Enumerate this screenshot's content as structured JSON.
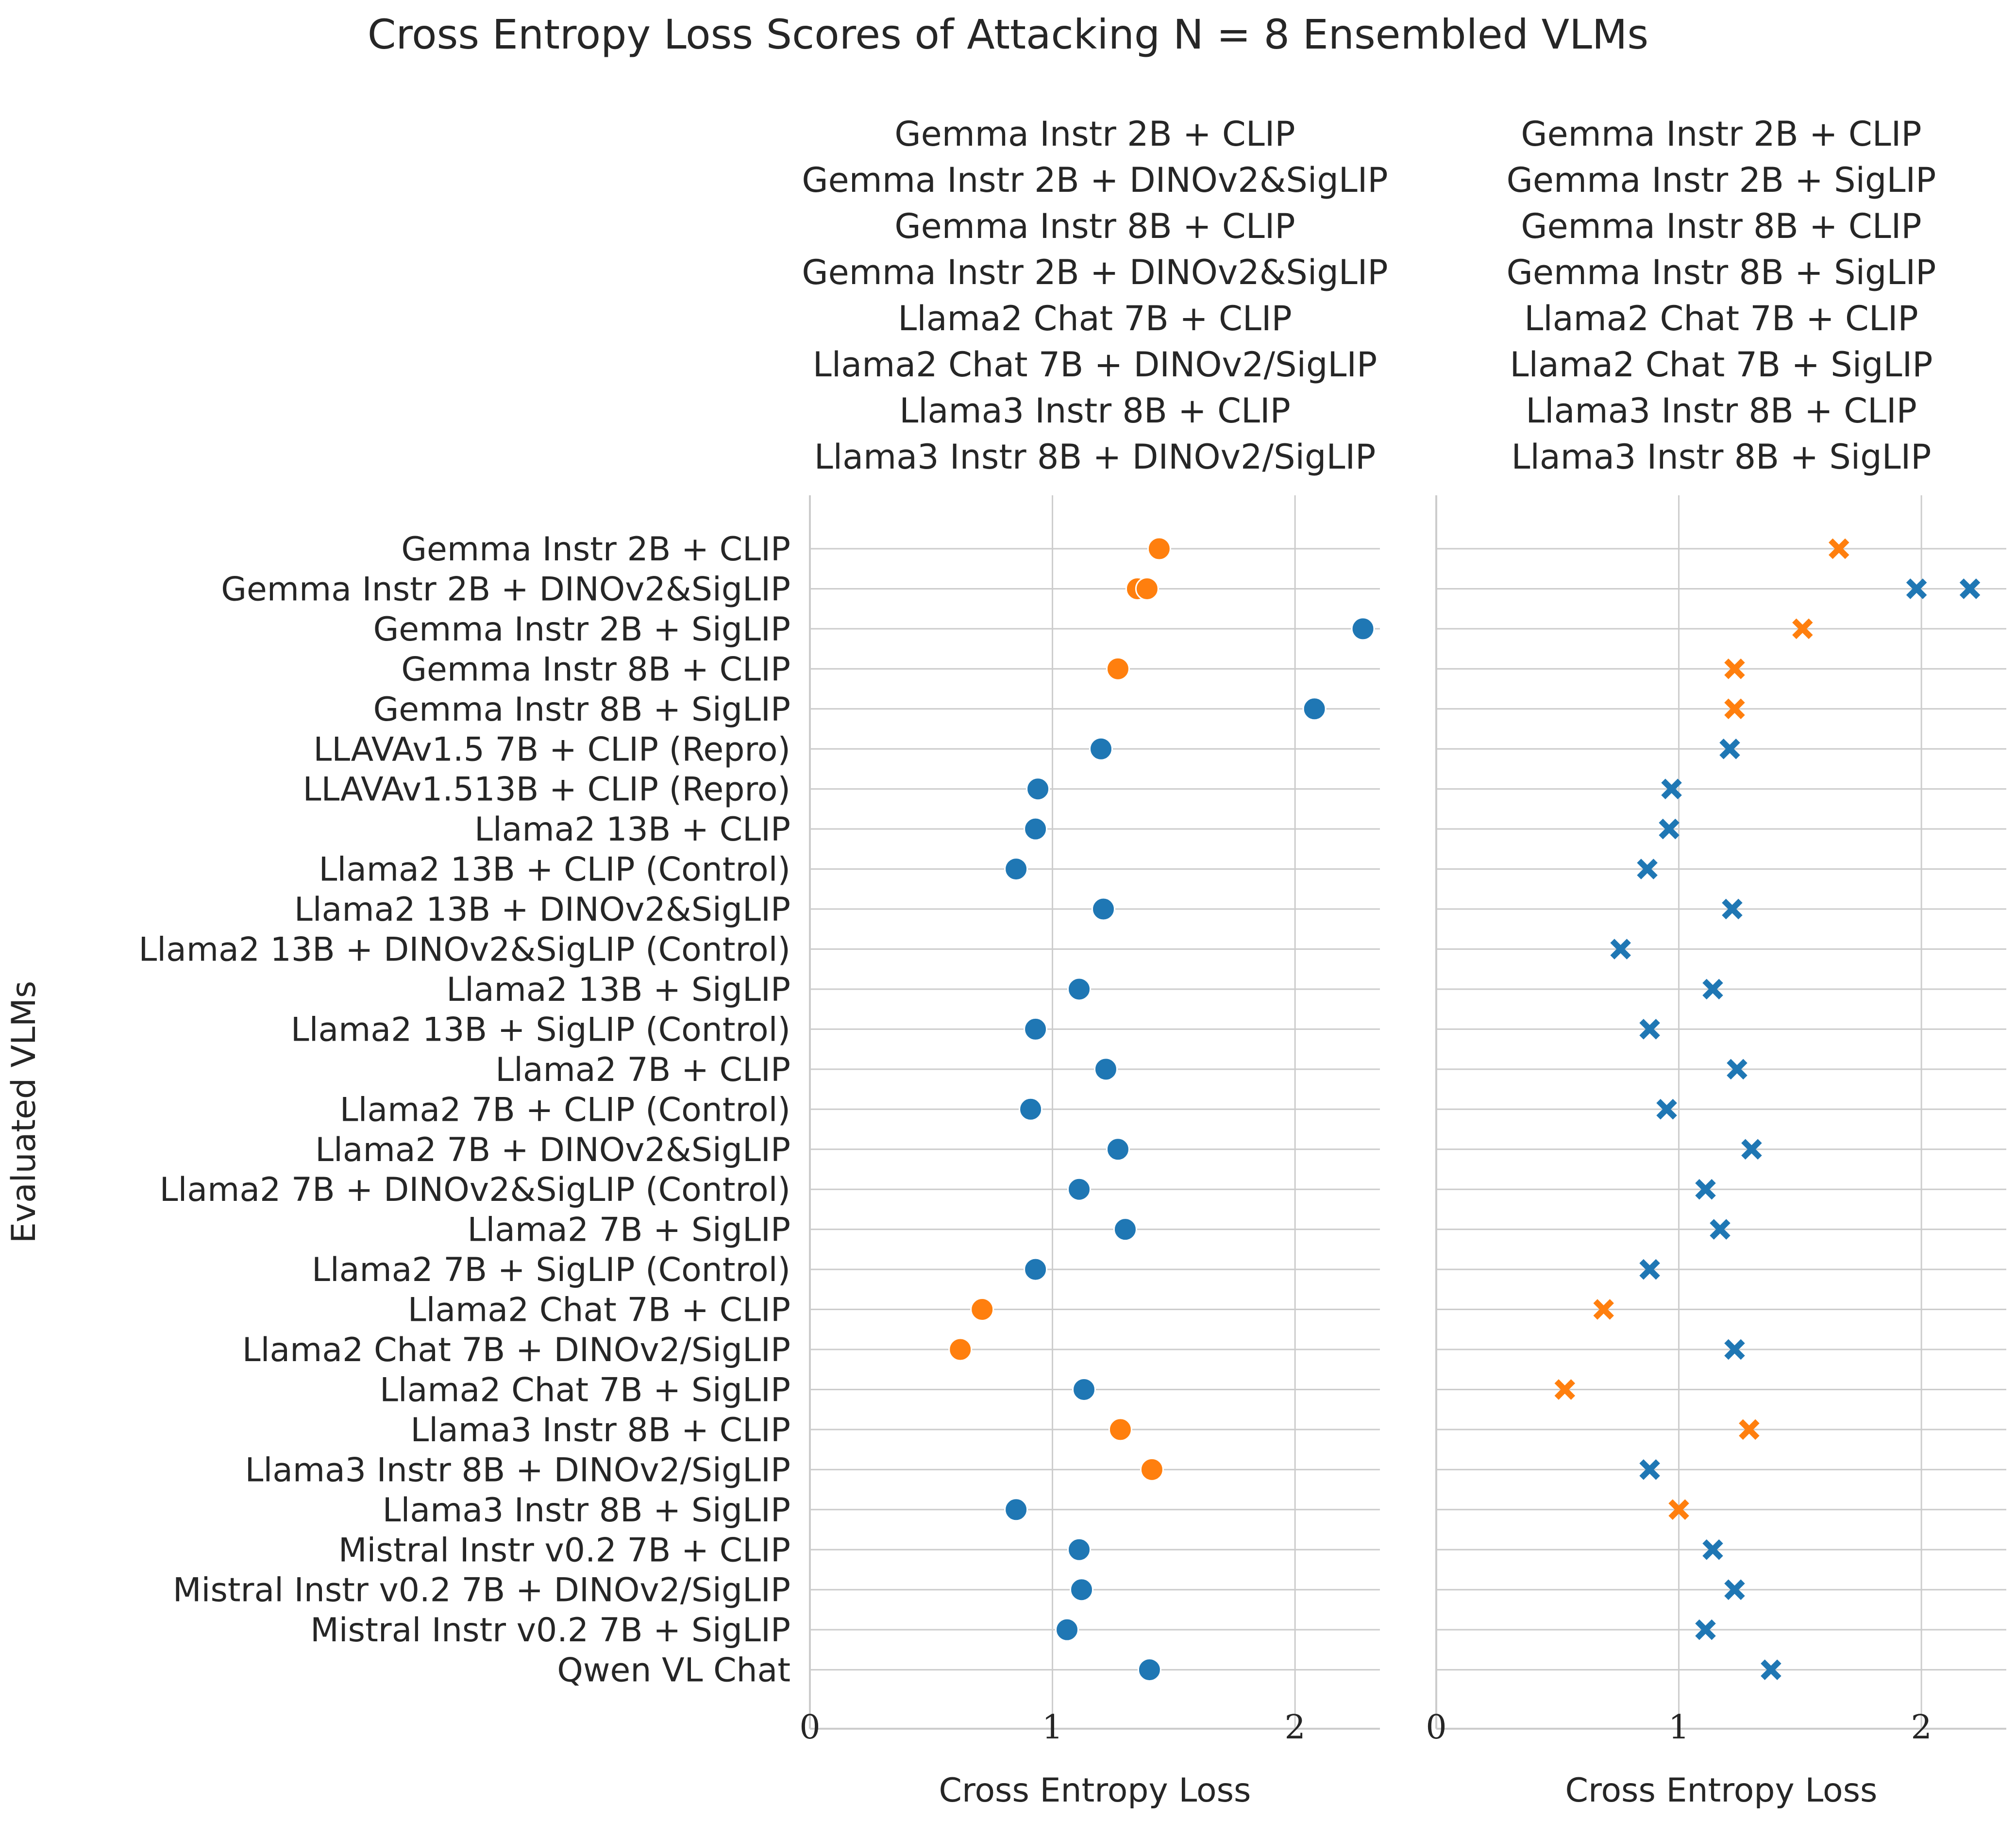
{
  "chart_data": {
    "type": "scatter",
    "title": "Cross Entropy Loss Scores of Attacking N = 8 Ensembled VLMs",
    "ylabel": "Evaluated VLMs",
    "xlabel": "Cross Entropy Loss",
    "xlim": [
      0,
      2.35
    ],
    "xticks": [
      0,
      1,
      2
    ],
    "grid": true,
    "colors": {
      "attacked": "#ff7f0e",
      "not_attacked": "#1f77b4"
    },
    "categories": [
      "Gemma Instr 2B + CLIP",
      "Gemma Instr 2B + DINOv2&SigLIP",
      "Gemma Instr 2B + SigLIP",
      "Gemma Instr 8B + CLIP",
      "Gemma Instr 8B + SigLIP",
      "LLAVAv1.5 7B + CLIP (Repro)",
      "LLAVAv1.513B + CLIP (Repro)",
      "Llama2 13B + CLIP",
      "Llama2 13B + CLIP (Control)",
      "Llama2 13B + DINOv2&SigLIP",
      "Llama2 13B + DINOv2&SigLIP (Control)",
      "Llama2 13B + SigLIP",
      "Llama2 13B + SigLIP (Control)",
      "Llama2 7B + CLIP",
      "Llama2 7B + CLIP (Control)",
      "Llama2 7B + DINOv2&SigLIP",
      "Llama2 7B + DINOv2&SigLIP (Control)",
      "Llama2 7B + SigLIP",
      "Llama2 7B + SigLIP (Control)",
      "Llama2 Chat 7B + CLIP",
      "Llama2 Chat 7B + DINOv2/SigLIP",
      "Llama2 Chat 7B + SigLIP",
      "Llama3 Instr 8B + CLIP",
      "Llama3 Instr 8B + DINOv2/SigLIP",
      "Llama3 Instr 8B + SigLIP",
      "Mistral Instr v0.2 7B + CLIP",
      "Mistral Instr v0.2 7B + DINOv2/SigLIP",
      "Mistral Instr v0.2 7B + SigLIP",
      "Qwen VL Chat"
    ],
    "panels": [
      {
        "title_lines": [
          "Gemma Instr 2B + CLIP",
          "Gemma Instr 2B + DINOv2&SigLIP",
          "Gemma Instr 8B + CLIP",
          "Gemma Instr 2B + DINOv2&SigLIP",
          "Llama2 Chat 7B + CLIP",
          "Llama2 Chat 7B + DINOv2/SigLIP",
          "Llama3 Instr 8B + CLIP",
          "Llama3 Instr 8B + DINOv2/SigLIP"
        ],
        "marker": "circle",
        "points": [
          {
            "y": 0,
            "x": 1.44,
            "attacked": true
          },
          {
            "y": 1,
            "x": 1.35,
            "attacked": true
          },
          {
            "y": 1,
            "x": 1.39,
            "attacked": true
          },
          {
            "y": 2,
            "x": 2.28,
            "attacked": false
          },
          {
            "y": 3,
            "x": 1.27,
            "attacked": true
          },
          {
            "y": 4,
            "x": 2.08,
            "attacked": false
          },
          {
            "y": 5,
            "x": 1.2,
            "attacked": false
          },
          {
            "y": 6,
            "x": 0.94,
            "attacked": false
          },
          {
            "y": 7,
            "x": 0.93,
            "attacked": false
          },
          {
            "y": 8,
            "x": 0.85,
            "attacked": false
          },
          {
            "y": 9,
            "x": 1.21,
            "attacked": false
          },
          {
            "y": 11,
            "x": 1.11,
            "attacked": false
          },
          {
            "y": 12,
            "x": 0.93,
            "attacked": false
          },
          {
            "y": 13,
            "x": 1.22,
            "attacked": false
          },
          {
            "y": 14,
            "x": 0.91,
            "attacked": false
          },
          {
            "y": 15,
            "x": 1.27,
            "attacked": false
          },
          {
            "y": 16,
            "x": 1.11,
            "attacked": false
          },
          {
            "y": 17,
            "x": 1.3,
            "attacked": false
          },
          {
            "y": 18,
            "x": 0.93,
            "attacked": false
          },
          {
            "y": 19,
            "x": 0.71,
            "attacked": true
          },
          {
            "y": 20,
            "x": 0.62,
            "attacked": true
          },
          {
            "y": 21,
            "x": 1.13,
            "attacked": false
          },
          {
            "y": 22,
            "x": 1.28,
            "attacked": true
          },
          {
            "y": 23,
            "x": 1.41,
            "attacked": true
          },
          {
            "y": 24,
            "x": 0.85,
            "attacked": false
          },
          {
            "y": 25,
            "x": 1.11,
            "attacked": false
          },
          {
            "y": 26,
            "x": 1.12,
            "attacked": false
          },
          {
            "y": 27,
            "x": 1.06,
            "attacked": false
          },
          {
            "y": 28,
            "x": 1.4,
            "attacked": false
          }
        ]
      },
      {
        "title_lines": [
          "Gemma Instr 2B + CLIP",
          "Gemma Instr 2B + SigLIP",
          "Gemma Instr 8B + CLIP",
          "Gemma Instr 8B + SigLIP",
          "Llama2 Chat 7B + CLIP",
          "Llama2 Chat 7B + SigLIP",
          "Llama3 Instr 8B + CLIP",
          "Llama3 Instr 8B + SigLIP"
        ],
        "marker": "x",
        "points": [
          {
            "y": 0,
            "x": 1.66,
            "attacked": true
          },
          {
            "y": 1,
            "x": 1.98,
            "attacked": false
          },
          {
            "y": 1,
            "x": 2.2,
            "attacked": false
          },
          {
            "y": 2,
            "x": 1.51,
            "attacked": true
          },
          {
            "y": 3,
            "x": 1.23,
            "attacked": true
          },
          {
            "y": 4,
            "x": 1.23,
            "attacked": true
          },
          {
            "y": 5,
            "x": 1.21,
            "attacked": false
          },
          {
            "y": 6,
            "x": 0.97,
            "attacked": false
          },
          {
            "y": 7,
            "x": 0.96,
            "attacked": false
          },
          {
            "y": 8,
            "x": 0.87,
            "attacked": false
          },
          {
            "y": 9,
            "x": 1.22,
            "attacked": false
          },
          {
            "y": 10,
            "x": 0.76,
            "attacked": false
          },
          {
            "y": 11,
            "x": 1.14,
            "attacked": false
          },
          {
            "y": 12,
            "x": 0.88,
            "attacked": false
          },
          {
            "y": 13,
            "x": 1.24,
            "attacked": false
          },
          {
            "y": 14,
            "x": 0.95,
            "attacked": false
          },
          {
            "y": 15,
            "x": 1.3,
            "attacked": false
          },
          {
            "y": 16,
            "x": 1.11,
            "attacked": false
          },
          {
            "y": 17,
            "x": 1.17,
            "attacked": false
          },
          {
            "y": 18,
            "x": 0.88,
            "attacked": false
          },
          {
            "y": 19,
            "x": 0.69,
            "attacked": true
          },
          {
            "y": 20,
            "x": 1.23,
            "attacked": false
          },
          {
            "y": 21,
            "x": 0.53,
            "attacked": true
          },
          {
            "y": 22,
            "x": 1.29,
            "attacked": true
          },
          {
            "y": 23,
            "x": 0.88,
            "attacked": false
          },
          {
            "y": 24,
            "x": 1.0,
            "attacked": true
          },
          {
            "y": 25,
            "x": 1.14,
            "attacked": false
          },
          {
            "y": 26,
            "x": 1.23,
            "attacked": false
          },
          {
            "y": 27,
            "x": 1.11,
            "attacked": false
          },
          {
            "y": 28,
            "x": 1.38,
            "attacked": false
          }
        ]
      }
    ]
  }
}
